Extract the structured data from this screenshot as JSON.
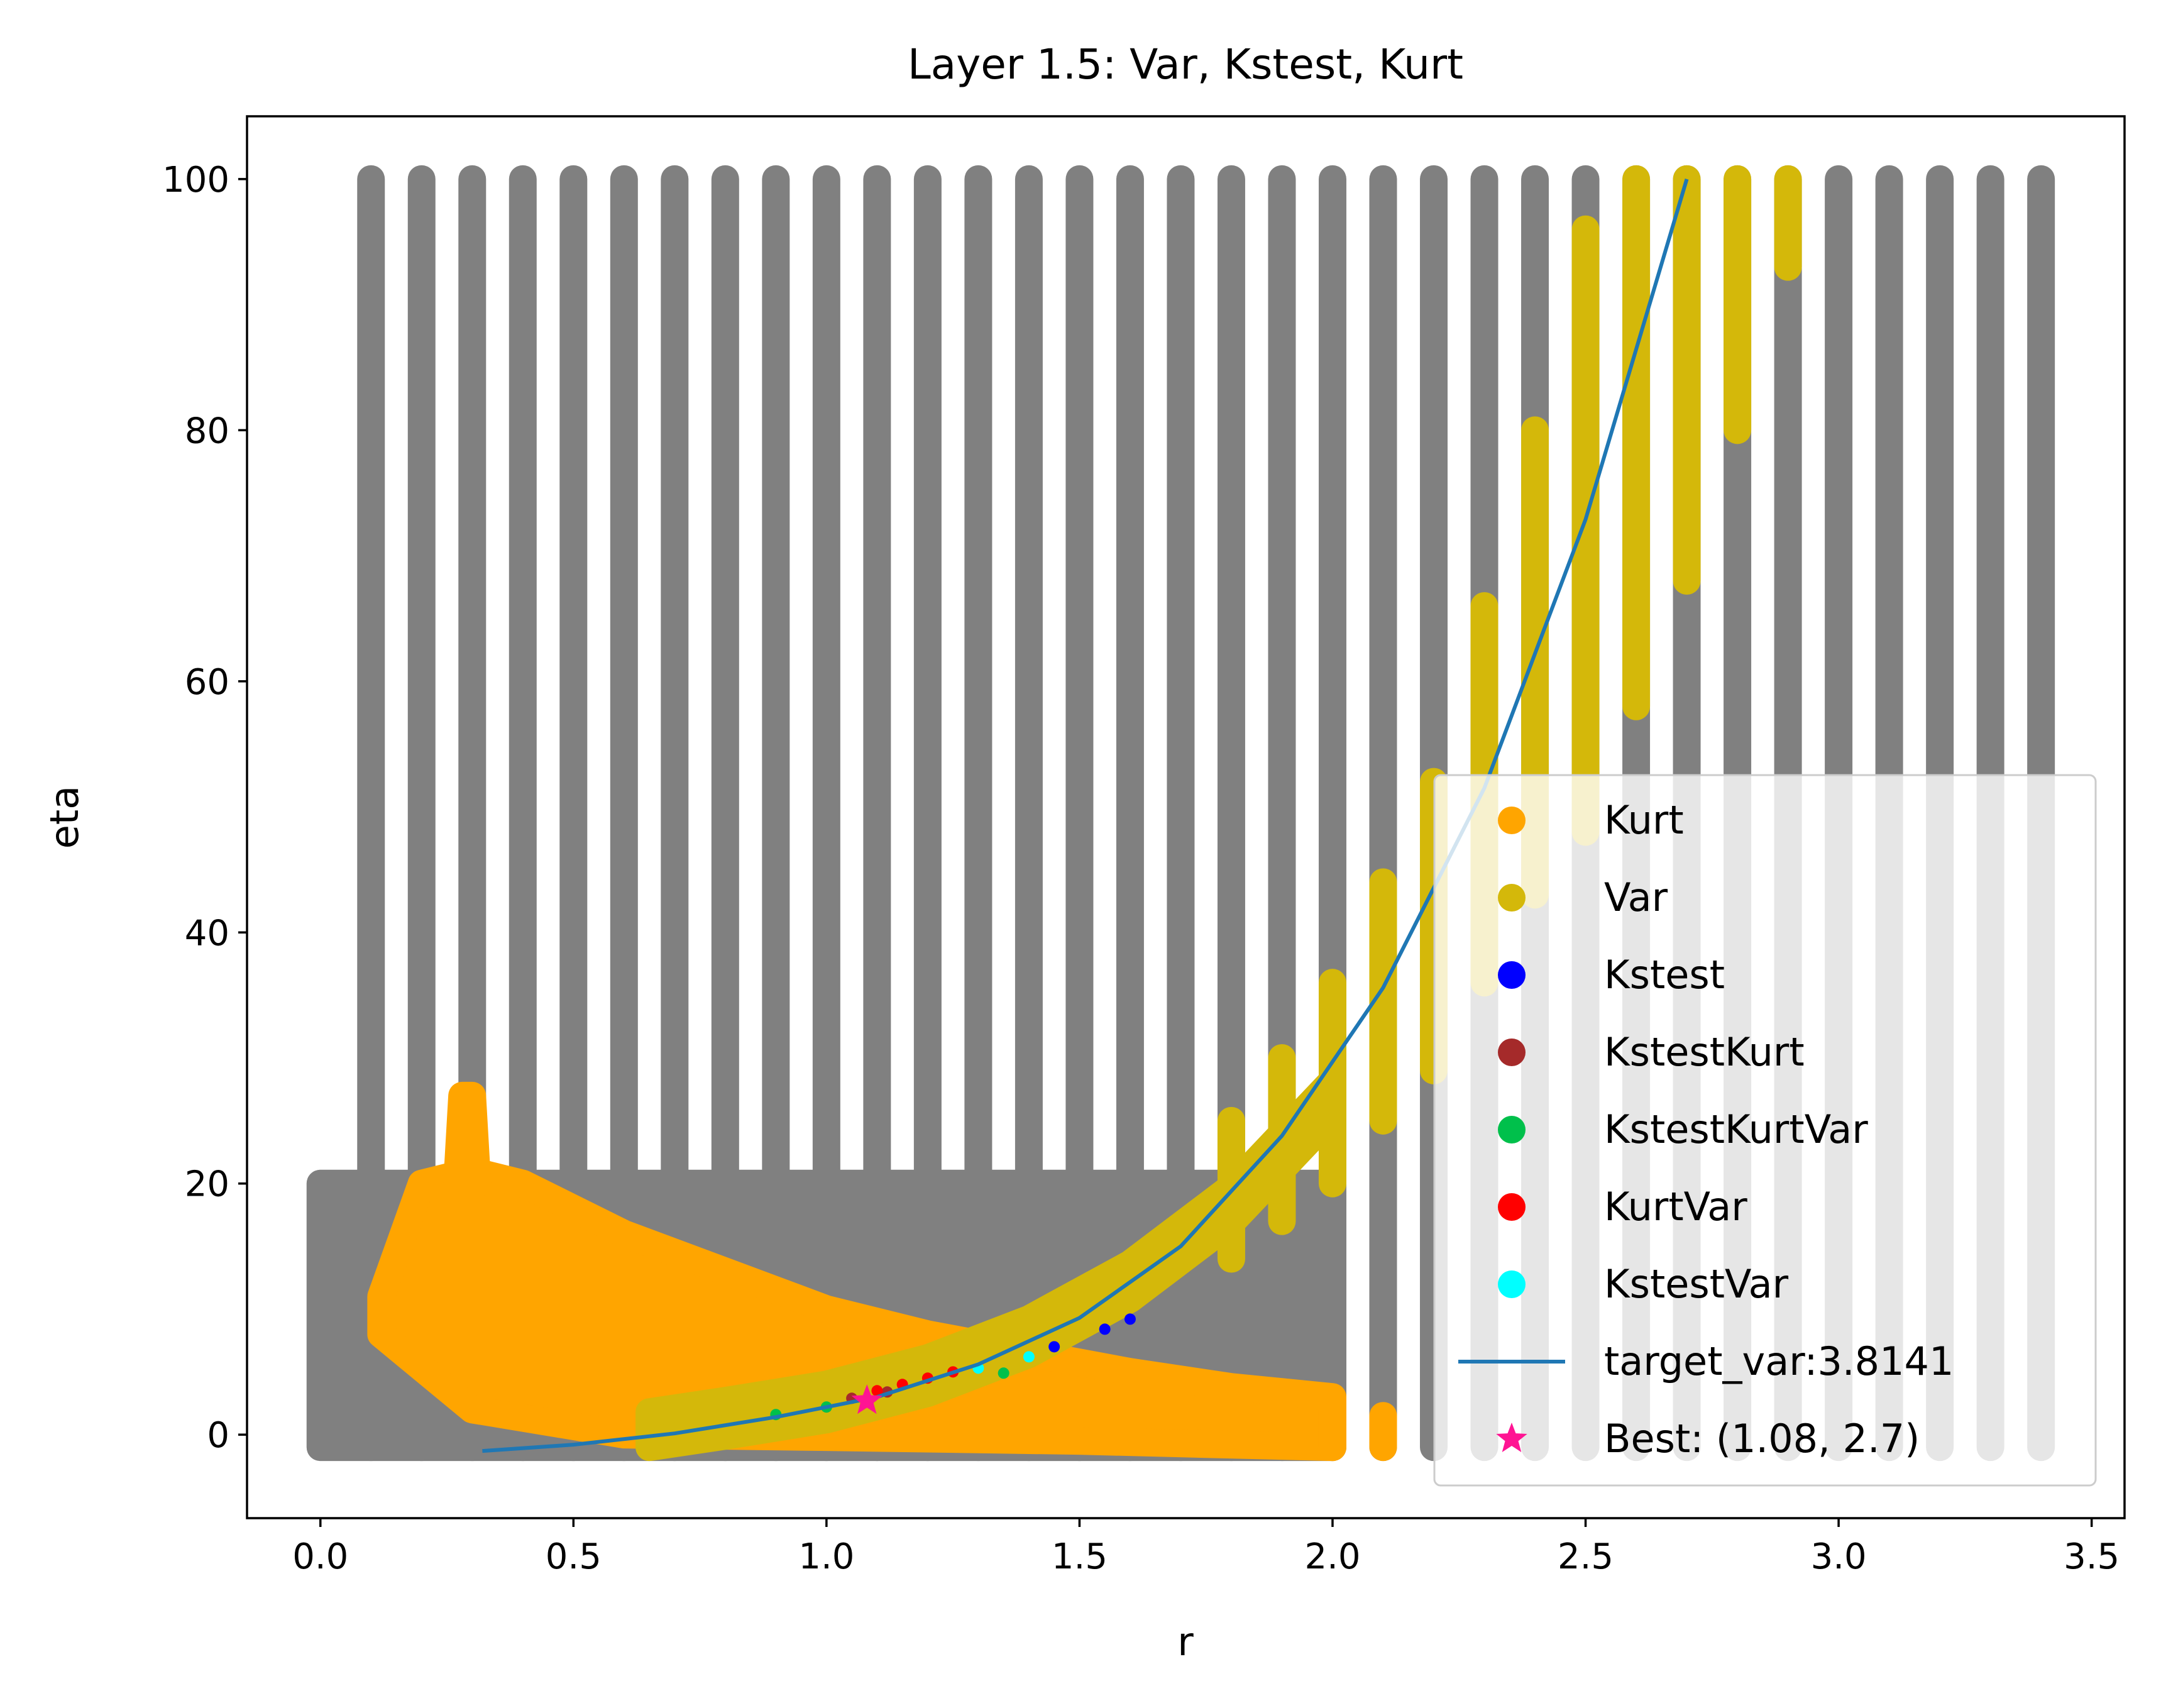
{
  "chart_data": {
    "type": "scatter",
    "title": "Layer 1.5: Var, Kstest, Kurt",
    "xlabel": "r",
    "ylabel": "eta",
    "xlim": [
      -0.145,
      3.565
    ],
    "ylim": [
      -6.65,
      105.0
    ],
    "xticks": [
      {
        "value": 0.0,
        "label": "0.0"
      },
      {
        "value": 0.5,
        "label": "0.5"
      },
      {
        "value": 1.0,
        "label": "1.0"
      },
      {
        "value": 1.5,
        "label": "1.5"
      },
      {
        "value": 2.0,
        "label": "2.0"
      },
      {
        "value": 2.5,
        "label": "2.5"
      },
      {
        "value": 3.0,
        "label": "3.0"
      },
      {
        "value": 3.5,
        "label": "3.5"
      }
    ],
    "yticks": [
      {
        "value": 0,
        "label": "0"
      },
      {
        "value": 20,
        "label": "20"
      },
      {
        "value": 40,
        "label": "40"
      },
      {
        "value": 60,
        "label": "60"
      },
      {
        "value": 80,
        "label": "80"
      },
      {
        "value": 100,
        "label": "100"
      }
    ],
    "grid": false,
    "legend_position": "lower-right",
    "colors": {
      "background_points": "#808080",
      "Kurt": "#ffa500",
      "Var": "#d4b80a",
      "Kstest": "#0000ff",
      "KstestKurt": "#a52a2a",
      "KstestKurtVar": "#00c04b",
      "KurtVar": "#ff0000",
      "KstestVar": "#00ffff",
      "target_var": "#1f77b4",
      "Best": "#ff1493"
    },
    "background_grid": {
      "description": "all (r, eta) parameter combinations, drawn grey",
      "fine_r_range": [
        0.0,
        2.0
      ],
      "fine_eta_range": [
        -1,
        20
      ],
      "coarse_r": [
        0.1,
        0.2,
        0.3,
        0.4,
        0.5,
        0.6,
        0.7,
        0.8,
        0.9,
        1.0,
        1.1,
        1.2,
        1.3,
        1.4,
        1.5,
        1.6,
        1.7,
        1.8,
        1.9,
        2.0,
        2.1,
        2.2,
        2.3,
        2.4,
        2.5,
        2.6,
        2.7,
        2.8,
        2.9,
        3.0,
        3.1,
        3.2,
        3.3,
        3.4
      ],
      "coarse_eta_range": [
        -1,
        100
      ]
    },
    "series": [
      {
        "name": "Kurt",
        "kind": "region",
        "upper": [
          [
            0.12,
            11
          ],
          [
            0.2,
            20
          ],
          [
            0.3,
            21
          ],
          [
            0.4,
            20
          ],
          [
            0.6,
            16
          ],
          [
            0.8,
            13
          ],
          [
            1.0,
            10
          ],
          [
            1.2,
            8
          ],
          [
            1.4,
            6.5
          ],
          [
            1.6,
            5
          ],
          [
            1.8,
            3.8
          ],
          [
            2.0,
            3
          ]
        ],
        "lower": [
          [
            2.0,
            -1
          ],
          [
            1.5,
            -0.5
          ],
          [
            1.0,
            -0.2
          ],
          [
            0.6,
            0
          ],
          [
            0.3,
            2
          ],
          [
            0.12,
            8
          ]
        ],
        "spike": [
          [
            0.27,
            20
          ],
          [
            0.28,
            27
          ],
          [
            0.3,
            27
          ],
          [
            0.31,
            20
          ]
        ],
        "columns": [
          {
            "r": 2.0,
            "eta": [
              -1,
              1.5
            ]
          },
          {
            "r": 2.1,
            "eta": [
              -1,
              1.5
            ]
          }
        ]
      },
      {
        "name": "Var",
        "kind": "band",
        "curve_r": [
          0.65,
          0.8,
          1.0,
          1.2,
          1.4,
          1.6,
          1.8,
          2.0
        ],
        "curve_eta": [
          0.4,
          1.3,
          2.6,
          4.7,
          7.8,
          12.2,
          18.3,
          26.8
        ],
        "band_width": 1.4,
        "columns": [
          {
            "r": 1.8,
            "eta": [
              14,
              25
            ]
          },
          {
            "r": 1.9,
            "eta": [
              17,
              30
            ]
          },
          {
            "r": 2.0,
            "eta": [
              20,
              36
            ]
          },
          {
            "r": 2.1,
            "eta": [
              25,
              44
            ]
          },
          {
            "r": 2.2,
            "eta": [
              29,
              52
            ]
          },
          {
            "r": 2.3,
            "eta": [
              36,
              66
            ]
          },
          {
            "r": 2.4,
            "eta": [
              43,
              80
            ]
          },
          {
            "r": 2.5,
            "eta": [
              48,
              96
            ]
          },
          {
            "r": 2.6,
            "eta": [
              58,
              100
            ]
          },
          {
            "r": 2.7,
            "eta": [
              68,
              100
            ]
          },
          {
            "r": 2.8,
            "eta": [
              80,
              100
            ]
          },
          {
            "r": 2.9,
            "eta": [
              93,
              100
            ]
          }
        ]
      },
      {
        "name": "Kstest",
        "points": [
          [
            1.45,
            7.0
          ],
          [
            1.55,
            8.4
          ],
          [
            1.6,
            9.2
          ]
        ]
      },
      {
        "name": "KstestKurt",
        "points": [
          [
            1.05,
            2.9
          ],
          [
            1.12,
            3.4
          ]
        ]
      },
      {
        "name": "KstestKurtVar",
        "points": [
          [
            0.9,
            1.6
          ],
          [
            1.0,
            2.2
          ],
          [
            1.35,
            4.9
          ]
        ]
      },
      {
        "name": "KurtVar",
        "points": [
          [
            1.1,
            3.5
          ],
          [
            1.15,
            4.0
          ],
          [
            1.2,
            4.5
          ],
          [
            1.25,
            5.0
          ]
        ]
      },
      {
        "name": "KstestVar",
        "points": [
          [
            1.3,
            5.3
          ],
          [
            1.4,
            6.2
          ]
        ]
      },
      {
        "name": "target_var:3.8141",
        "kind": "line",
        "x": [
          0.32,
          0.5,
          0.7,
          0.9,
          1.1,
          1.3,
          1.5,
          1.7,
          1.9,
          2.1,
          2.3,
          2.5,
          2.7
        ],
        "y": [
          -1.3,
          -0.8,
          0.1,
          1.4,
          3.0,
          5.6,
          9.3,
          15.0,
          23.8,
          35.6,
          51.5,
          72.9,
          100.0
        ]
      },
      {
        "name": "Best: (1.08, 2.7)",
        "kind": "marker",
        "points": [
          [
            1.08,
            2.7
          ]
        ]
      }
    ]
  }
}
